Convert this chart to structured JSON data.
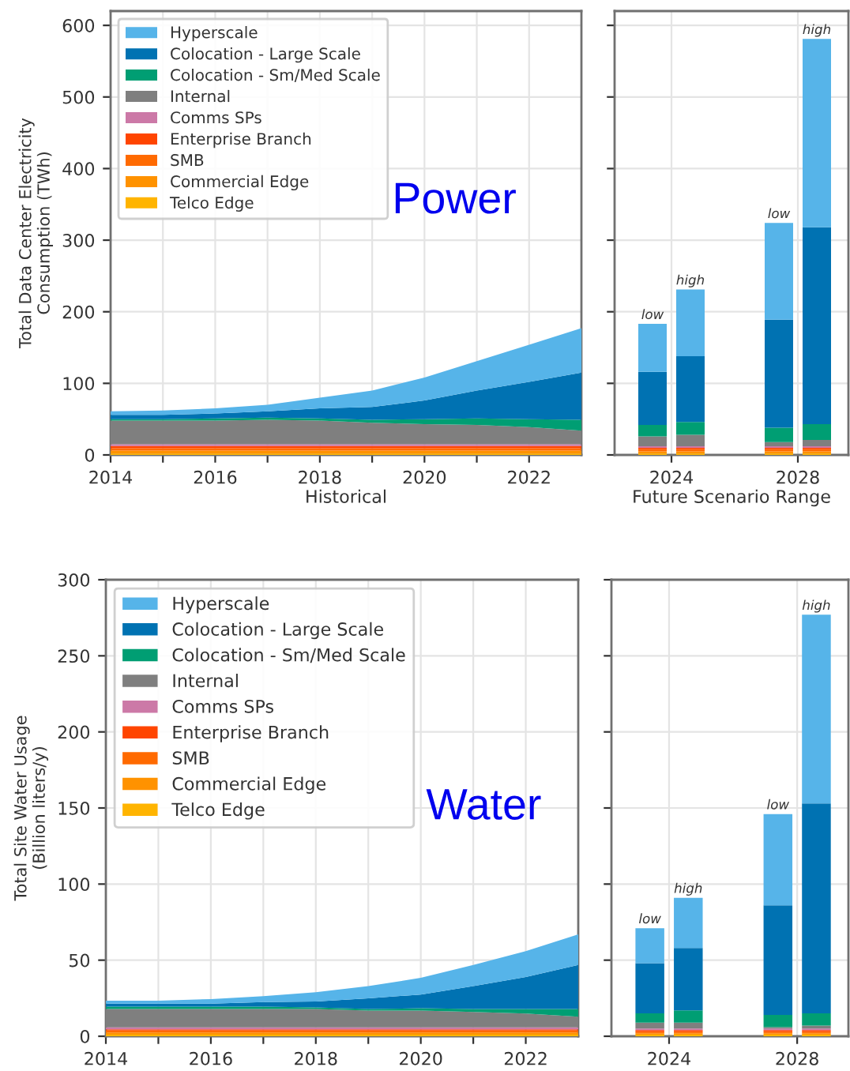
{
  "chart_data": [
    {
      "type": "area",
      "stacked": true,
      "ylabel": "Total Data Center Electricity\nConsumption (TWh)",
      "xlabel": "Historical",
      "x": [
        2014,
        2015,
        2016,
        2017,
        2018,
        2019,
        2020,
        2021,
        2022,
        2023
      ],
      "xlim": [
        2014,
        2023
      ],
      "xticks": [
        2014,
        {
          "value": 2015,
          "label": null
        },
        2016,
        {
          "value": 2017,
          "label": null
        },
        2018,
        {
          "value": 2019,
          "label": null
        },
        2020,
        {
          "value": 2021,
          "label": null
        },
        2022
      ],
      "ylim": [
        0,
        620
      ],
      "yticks": [
        0,
        100,
        200,
        300,
        400,
        500,
        600
      ],
      "grid": true,
      "legend": "top left",
      "annotations": [
        "Power"
      ],
      "series": [
        {
          "name": "Telco Edge",
          "color": "#ffb400",
          "values": [
            2,
            2,
            2,
            2,
            2,
            2,
            2,
            2,
            2,
            2
          ]
        },
        {
          "name": "Commercial Edge",
          "color": "#ff9200",
          "values": [
            4,
            4,
            4,
            4,
            4,
            4,
            4,
            4,
            4,
            4
          ]
        },
        {
          "name": "SMB",
          "color": "#ff6a00",
          "values": [
            3.5,
            3.5,
            3.5,
            3.5,
            3.5,
            3.5,
            3.5,
            3.5,
            3.5,
            3.5
          ]
        },
        {
          "name": "Enterprise Branch",
          "color": "#ff4500",
          "values": [
            3,
            3,
            3,
            3,
            3,
            3,
            3,
            3,
            3,
            3
          ]
        },
        {
          "name": "Comms SPs",
          "color": "#cc79a7",
          "values": [
            2.5,
            2.5,
            2.5,
            2.5,
            2.5,
            2.5,
            2.5,
            2.5,
            2.5,
            2.5
          ]
        },
        {
          "name": "Internal",
          "color": "#7f7f7f",
          "values": [
            33,
            33,
            33,
            34,
            33,
            30,
            28,
            27,
            24,
            19
          ]
        },
        {
          "name": "Colocation - Sm/Med Scale",
          "color": "#009e73",
          "values": [
            2,
            2,
            3,
            3,
            3,
            4,
            7,
            9,
            11,
            15
          ]
        },
        {
          "name": "Colocation - Large Scale",
          "color": "#0072b2",
          "values": [
            6,
            6,
            7,
            9,
            14,
            18,
            26,
            39,
            52,
            66
          ]
        },
        {
          "name": "Hyperscale",
          "color": "#56b4e9",
          "values": [
            5,
            6,
            7,
            9,
            15,
            23,
            32,
            41,
            52,
            62
          ]
        }
      ]
    },
    {
      "type": "bar",
      "stacked": true,
      "xlabel": "Future Scenario Range",
      "x": [
        2023.4,
        2024.6,
        2027.4,
        2028.6
      ],
      "xlim": [
        2022.2,
        2029.6
      ],
      "xticks": [
        2024,
        2028
      ],
      "ylim": [
        0,
        620
      ],
      "yticks": [
        0,
        100,
        200,
        300,
        400,
        500,
        600
      ],
      "tick_labels": "x",
      "grid": true,
      "annotations": [
        {
          "text": "low",
          "x": 2023.4,
          "y": 183
        },
        {
          "text": "high",
          "x": 2024.6,
          "y": 231
        },
        {
          "text": "low",
          "x": 2027.4,
          "y": 324
        },
        {
          "text": "high",
          "x": 2028.6,
          "y": 581
        }
      ],
      "series": [
        {
          "color": "#ffb400",
          "values": [
            2,
            2,
            2,
            2
          ]
        },
        {
          "color": "#ff9200",
          "values": [
            3,
            3,
            3,
            3
          ]
        },
        {
          "color": "#ff6a00",
          "values": [
            3,
            3,
            3,
            3
          ]
        },
        {
          "color": "#ff4500",
          "values": [
            2,
            2,
            2,
            2
          ]
        },
        {
          "color": "#cc79a7",
          "values": [
            2,
            2,
            2,
            2
          ]
        },
        {
          "color": "#7f7f7f",
          "values": [
            14,
            16,
            6,
            9
          ]
        },
        {
          "color": "#009e73",
          "values": [
            16,
            18,
            20,
            22
          ]
        },
        {
          "color": "#0072b2",
          "values": [
            74,
            92,
            151,
            275
          ]
        },
        {
          "color": "#56b4e9",
          "values": [
            67,
            93,
            135,
            263
          ]
        }
      ]
    },
    {
      "type": "area",
      "stacked": true,
      "ylabel": "Total Site Water Usage\n(Billion liters/y)",
      "x": [
        2014,
        2015,
        2016,
        2017,
        2018,
        2019,
        2020,
        2021,
        2022,
        2023
      ],
      "xlim": [
        2014,
        2023
      ],
      "xticks": [
        2014,
        {
          "value": 2015,
          "label": null
        },
        2016,
        {
          "value": 2017,
          "label": null
        },
        2018,
        {
          "value": 2019,
          "label": null
        },
        2020,
        {
          "value": 2021,
          "label": null
        },
        2022
      ],
      "ylim": [
        0,
        300
      ],
      "yticks": [
        0,
        50,
        100,
        150,
        200,
        250,
        300
      ],
      "grid": true,
      "legend": "top left",
      "annotations": [
        "Water"
      ],
      "series": [
        {
          "name": "Telco Edge",
          "color": "#ffb400",
          "values": [
            1,
            1,
            1,
            1,
            1,
            1,
            1,
            1,
            1,
            1
          ]
        },
        {
          "name": "Commercial Edge",
          "color": "#ff9200",
          "values": [
            1.5,
            1.5,
            1.5,
            1.5,
            1.5,
            1.5,
            1.5,
            1.5,
            1.5,
            1.5
          ]
        },
        {
          "name": "SMB",
          "color": "#ff6a00",
          "values": [
            1.2,
            1.2,
            1.2,
            1.2,
            1.2,
            1.2,
            1.2,
            1.2,
            1.2,
            1.2
          ]
        },
        {
          "name": "Enterprise Branch",
          "color": "#ff4500",
          "values": [
            0.8,
            0.8,
            0.8,
            0.8,
            0.8,
            0.8,
            0.8,
            0.8,
            0.8,
            0.8
          ]
        },
        {
          "name": "Comms SPs",
          "color": "#cc79a7",
          "values": [
            1.4,
            1.4,
            1.4,
            1.4,
            1.4,
            1.4,
            1.4,
            1.4,
            1.4,
            1.4
          ]
        },
        {
          "name": "Internal",
          "color": "#7f7f7f",
          "values": [
            12,
            12,
            12,
            12,
            12,
            11,
            11,
            10,
            9,
            7
          ]
        },
        {
          "name": "Colocation - Sm/Med Scale",
          "color": "#009e73",
          "values": [
            1.5,
            1.5,
            1.5,
            1.5,
            1,
            1,
            1.5,
            2,
            3,
            5
          ]
        },
        {
          "name": "Colocation - Large Scale",
          "color": "#0072b2",
          "values": [
            2,
            2,
            2,
            3,
            4,
            7,
            9,
            15,
            21,
            29
          ]
        },
        {
          "name": "Hyperscale",
          "color": "#56b4e9",
          "values": [
            2,
            2,
            3,
            4,
            6,
            8,
            11,
            14,
            17,
            20
          ]
        }
      ]
    },
    {
      "type": "bar",
      "stacked": true,
      "x": [
        2023.4,
        2024.6,
        2027.4,
        2028.6
      ],
      "xlim": [
        2022.2,
        2029.6
      ],
      "xticks": [
        2024,
        2028
      ],
      "ylim": [
        0,
        300
      ],
      "yticks": [
        0,
        50,
        100,
        150,
        200,
        250,
        300
      ],
      "tick_labels": "x",
      "grid": true,
      "annotations": [
        {
          "text": "low",
          "x": 2023.4,
          "y": 71
        },
        {
          "text": "high",
          "x": 2024.6,
          "y": 91
        },
        {
          "text": "low",
          "x": 2027.4,
          "y": 146
        },
        {
          "text": "high",
          "x": 2028.6,
          "y": 277
        }
      ],
      "series": [
        {
          "color": "#ffb400",
          "values": [
            1,
            1,
            1,
            1
          ]
        },
        {
          "color": "#ff9200",
          "values": [
            1,
            1,
            1,
            1
          ]
        },
        {
          "color": "#ff6a00",
          "values": [
            1,
            1,
            1,
            1
          ]
        },
        {
          "color": "#ff4500",
          "values": [
            1,
            1,
            1,
            1
          ]
        },
        {
          "color": "#cc79a7",
          "values": [
            1,
            1,
            1,
            1
          ]
        },
        {
          "color": "#7f7f7f",
          "values": [
            4,
            4,
            1,
            2
          ]
        },
        {
          "color": "#009e73",
          "values": [
            6,
            8,
            8,
            8
          ]
        },
        {
          "color": "#0072b2",
          "values": [
            33,
            41,
            72,
            138
          ]
        },
        {
          "color": "#56b4e9",
          "values": [
            23,
            33,
            60,
            124
          ]
        }
      ]
    }
  ]
}
